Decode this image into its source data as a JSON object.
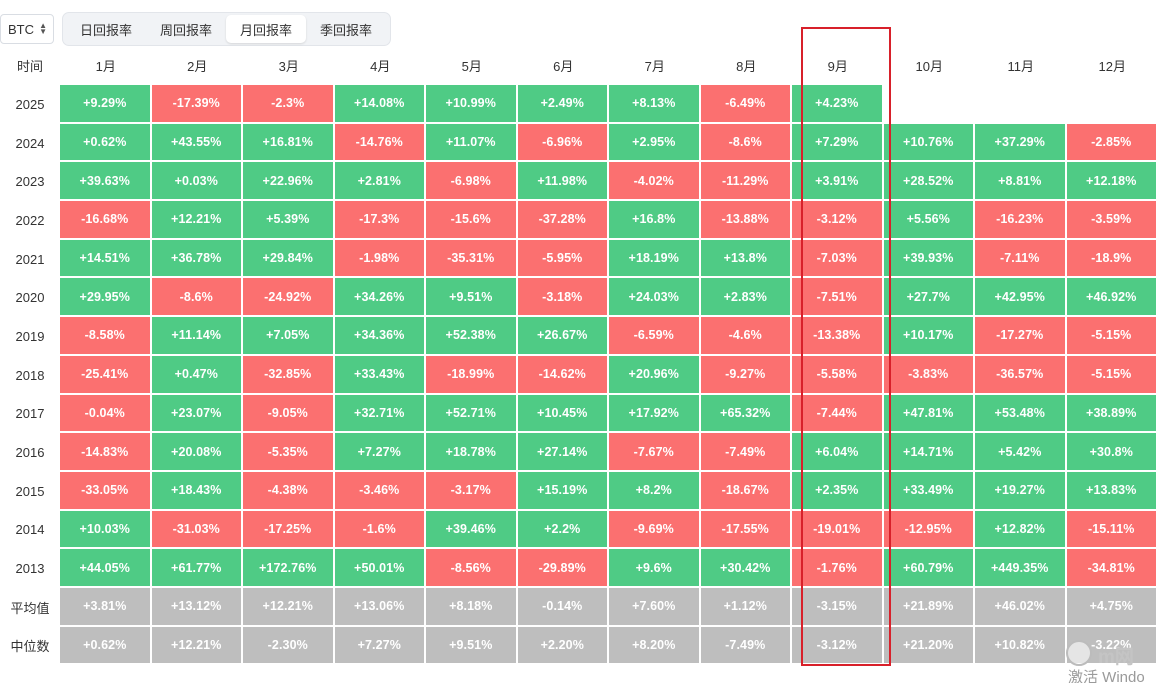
{
  "asset_select": {
    "value": "BTC"
  },
  "tabs": [
    {
      "label": "日回报率",
      "active": false
    },
    {
      "label": "周回报率",
      "active": false
    },
    {
      "label": "月回报率",
      "active": true
    },
    {
      "label": "季回报率",
      "active": false
    }
  ],
  "table": {
    "corner_header": "时间",
    "months": [
      "1月",
      "2月",
      "3月",
      "4月",
      "5月",
      "6月",
      "7月",
      "8月",
      "9月",
      "10月",
      "11月",
      "12月"
    ],
    "rows": [
      {
        "year": "2025",
        "values": [
          "+9.29%",
          "-17.39%",
          "-2.3%",
          "+14.08%",
          "+10.99%",
          "+2.49%",
          "+8.13%",
          "-6.49%",
          "+4.23%",
          "",
          "",
          ""
        ]
      },
      {
        "year": "2024",
        "values": [
          "+0.62%",
          "+43.55%",
          "+16.81%",
          "-14.76%",
          "+11.07%",
          "-6.96%",
          "+2.95%",
          "-8.6%",
          "+7.29%",
          "+10.76%",
          "+37.29%",
          "-2.85%"
        ]
      },
      {
        "year": "2023",
        "values": [
          "+39.63%",
          "+0.03%",
          "+22.96%",
          "+2.81%",
          "-6.98%",
          "+11.98%",
          "-4.02%",
          "-11.29%",
          "+3.91%",
          "+28.52%",
          "+8.81%",
          "+12.18%"
        ]
      },
      {
        "year": "2022",
        "values": [
          "-16.68%",
          "+12.21%",
          "+5.39%",
          "-17.3%",
          "-15.6%",
          "-37.28%",
          "+16.8%",
          "-13.88%",
          "-3.12%",
          "+5.56%",
          "-16.23%",
          "-3.59%"
        ]
      },
      {
        "year": "2021",
        "values": [
          "+14.51%",
          "+36.78%",
          "+29.84%",
          "-1.98%",
          "-35.31%",
          "-5.95%",
          "+18.19%",
          "+13.8%",
          "-7.03%",
          "+39.93%",
          "-7.11%",
          "-18.9%"
        ]
      },
      {
        "year": "2020",
        "values": [
          "+29.95%",
          "-8.6%",
          "-24.92%",
          "+34.26%",
          "+9.51%",
          "-3.18%",
          "+24.03%",
          "+2.83%",
          "-7.51%",
          "+27.7%",
          "+42.95%",
          "+46.92%"
        ]
      },
      {
        "year": "2019",
        "values": [
          "-8.58%",
          "+11.14%",
          "+7.05%",
          "+34.36%",
          "+52.38%",
          "+26.67%",
          "-6.59%",
          "-4.6%",
          "-13.38%",
          "+10.17%",
          "-17.27%",
          "-5.15%"
        ]
      },
      {
        "year": "2018",
        "values": [
          "-25.41%",
          "+0.47%",
          "-32.85%",
          "+33.43%",
          "-18.99%",
          "-14.62%",
          "+20.96%",
          "-9.27%",
          "-5.58%",
          "-3.83%",
          "-36.57%",
          "-5.15%"
        ]
      },
      {
        "year": "2017",
        "values": [
          "-0.04%",
          "+23.07%",
          "-9.05%",
          "+32.71%",
          "+52.71%",
          "+10.45%",
          "+17.92%",
          "+65.32%",
          "-7.44%",
          "+47.81%",
          "+53.48%",
          "+38.89%"
        ]
      },
      {
        "year": "2016",
        "values": [
          "-14.83%",
          "+20.08%",
          "-5.35%",
          "+7.27%",
          "+18.78%",
          "+27.14%",
          "-7.67%",
          "-7.49%",
          "+6.04%",
          "+14.71%",
          "+5.42%",
          "+30.8%"
        ]
      },
      {
        "year": "2015",
        "values": [
          "-33.05%",
          "+18.43%",
          "-4.38%",
          "-3.46%",
          "-3.17%",
          "+15.19%",
          "+8.2%",
          "-18.67%",
          "+2.35%",
          "+33.49%",
          "+19.27%",
          "+13.83%"
        ]
      },
      {
        "year": "2014",
        "values": [
          "+10.03%",
          "-31.03%",
          "-17.25%",
          "-1.6%",
          "+39.46%",
          "+2.2%",
          "-9.69%",
          "-17.55%",
          "-19.01%",
          "-12.95%",
          "+12.82%",
          "-15.11%"
        ]
      },
      {
        "year": "2013",
        "values": [
          "+44.05%",
          "+61.77%",
          "+172.76%",
          "+50.01%",
          "-8.56%",
          "-29.89%",
          "+9.6%",
          "+30.42%",
          "-1.76%",
          "+60.79%",
          "+449.35%",
          "-34.81%"
        ]
      }
    ],
    "stats": [
      {
        "label": "平均值",
        "values": [
          "+3.81%",
          "+13.12%",
          "+12.21%",
          "+13.06%",
          "+8.18%",
          "-0.14%",
          "+7.60%",
          "+1.12%",
          "-3.15%",
          "+21.89%",
          "+46.02%",
          "+4.75%"
        ]
      },
      {
        "label": "中位数",
        "values": [
          "+0.62%",
          "+12.21%",
          "-2.30%",
          "+7.27%",
          "+9.51%",
          "+2.20%",
          "+8.20%",
          "-7.49%",
          "-3.12%",
          "+21.20%",
          "+10.82%",
          "-3.22%"
        ]
      }
    ]
  },
  "highlight_column": "9月",
  "colors": {
    "positive": "#4fcb85",
    "negative": "#fb7070",
    "stat": "#bebebe",
    "highlight": "#d8202a"
  },
  "watermark": {
    "brand": "m网",
    "activate": "激活 Windo"
  }
}
